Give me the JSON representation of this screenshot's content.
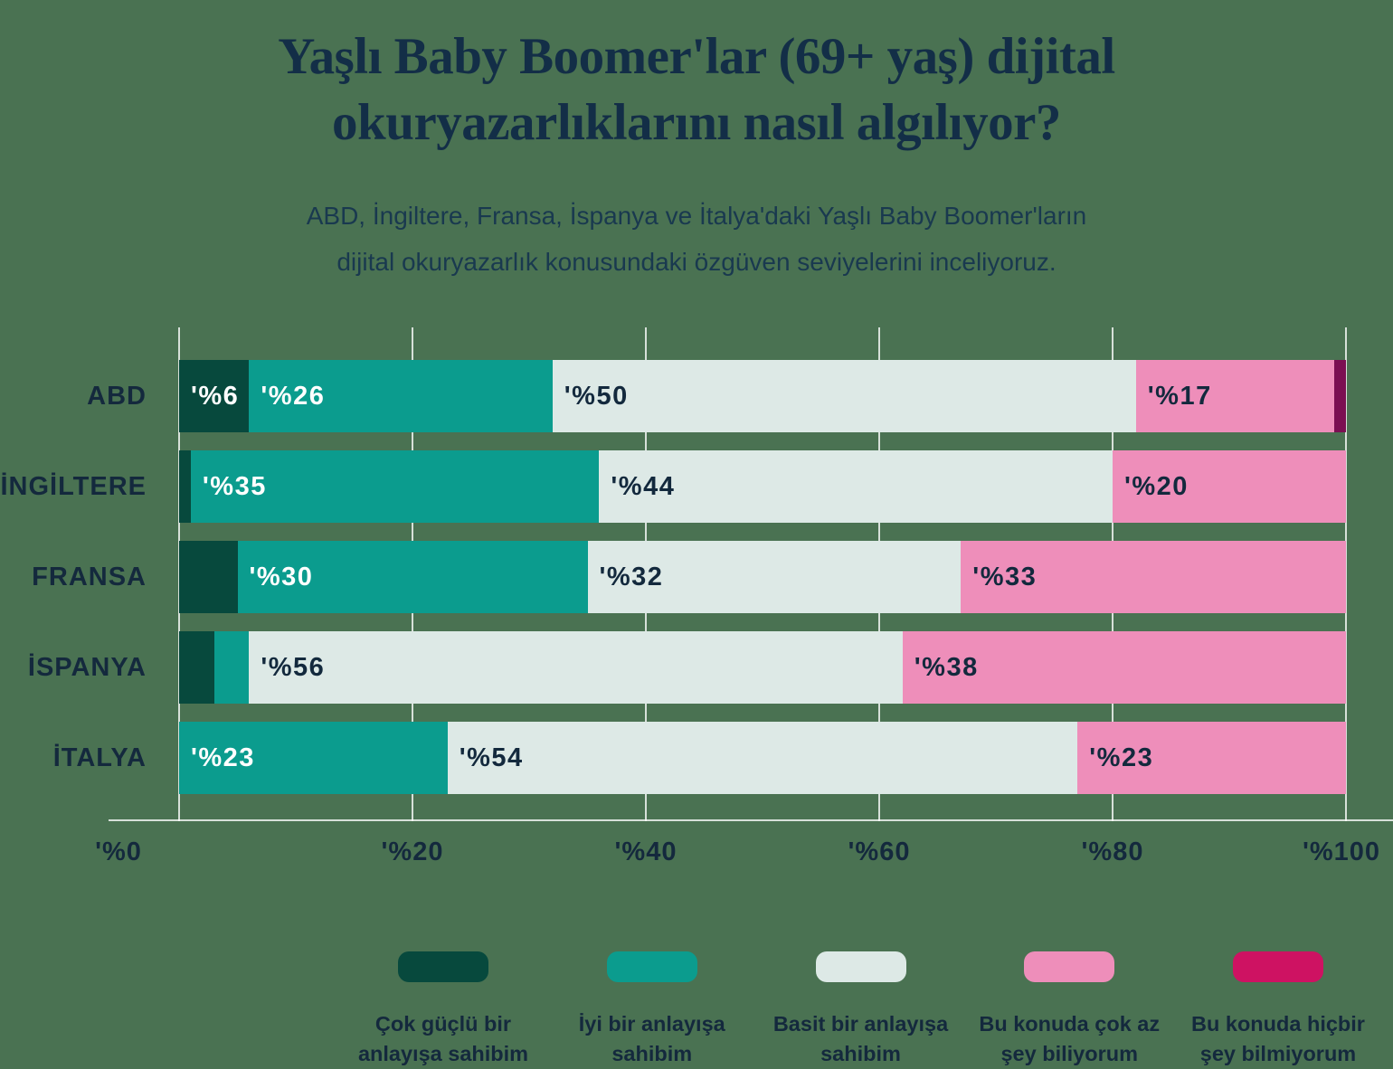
{
  "title_lines": [
    "Yaşlı Baby Boomer'lar (69+ yaş) dijital",
    "okuryazarlıklarını nasıl algılıyor?"
  ],
  "subtitle_lines": [
    "ABD, İngiltere, Fransa, İspanya ve İtalya'daki Yaşlı Baby Boomer'ların",
    "dijital okuryazarlık konusundaki özgüven seviyelerini inceliyoruz."
  ],
  "chart_data": {
    "type": "bar",
    "variant": "stacked-horizontal",
    "categories": [
      "ABD",
      "İNGİLTERE",
      "FRANSA",
      "İSPANYA",
      "İTALYA"
    ],
    "series": [
      {
        "name": "Çok güçlü bir anlayışa sahibim",
        "color": "#07493D",
        "bar_color": "#07493D",
        "label_color": "#FFFFFF",
        "values": [
          6,
          1,
          5,
          3,
          0
        ]
      },
      {
        "name": "İyi bir anlayışa sahibim",
        "color": "#0B9C8E",
        "bar_color": "#0B9C8E",
        "label_color": "#FFFFFF",
        "values": [
          26,
          35,
          30,
          3,
          23
        ]
      },
      {
        "name": "Basit bir anlayışa sahibim",
        "color": "#DDE9E6",
        "bar_color": "#DDE9E6",
        "label_color": "#13293D",
        "values": [
          50,
          44,
          32,
          56,
          54
        ]
      },
      {
        "name": "Bu konuda çok az şey biliyorum",
        "color": "#EE8EBA",
        "bar_color": "#EE8EBA",
        "label_color": "#13293D",
        "values": [
          17,
          20,
          33,
          38,
          23
        ]
      },
      {
        "name": "Bu konuda hiçbir şey bilmiyorum",
        "color": "#CE1262",
        "bar_color": "#7B0F52",
        "label_color": "#FFFFFF",
        "values": [
          1,
          0,
          0,
          0,
          0
        ]
      }
    ],
    "value_label_prefix": "'%",
    "min_label_value": 6,
    "xlim": [
      0,
      100
    ],
    "x_ticks": [
      {
        "label": "'%0",
        "value": 0
      },
      {
        "label": "'%20",
        "value": 20
      },
      {
        "label": "'%40",
        "value": 40
      },
      {
        "label": "'%60",
        "value": 60
      },
      {
        "label": "'%80",
        "value": 80
      },
      {
        "label": "'%100",
        "value": 100
      }
    ],
    "grid": true,
    "legend_position": "bottom"
  },
  "legend": {
    "items": [
      {
        "lines": [
          "Çok güçlü bir",
          "anlayışa sahibim"
        ],
        "color": "#07493D"
      },
      {
        "lines": [
          "İyi bir anlayışa",
          "sahibim"
        ],
        "color": "#0B9C8E"
      },
      {
        "lines": [
          "Basit bir anlayışa",
          "sahibim"
        ],
        "color": "#DDE9E6"
      },
      {
        "lines": [
          "Bu konuda çok az",
          "şey biliyorum"
        ],
        "color": "#EE8EBA"
      },
      {
        "lines": [
          "Bu konuda hiçbir",
          "şey bilmiyorum"
        ],
        "color": "#CE1262"
      }
    ]
  },
  "colors": {
    "background": "#4A7252",
    "title": "#132E47",
    "subtitle": "#19394F",
    "axis_text": "#14293D",
    "gridline": "rgba(255,255,255,0.78)"
  }
}
